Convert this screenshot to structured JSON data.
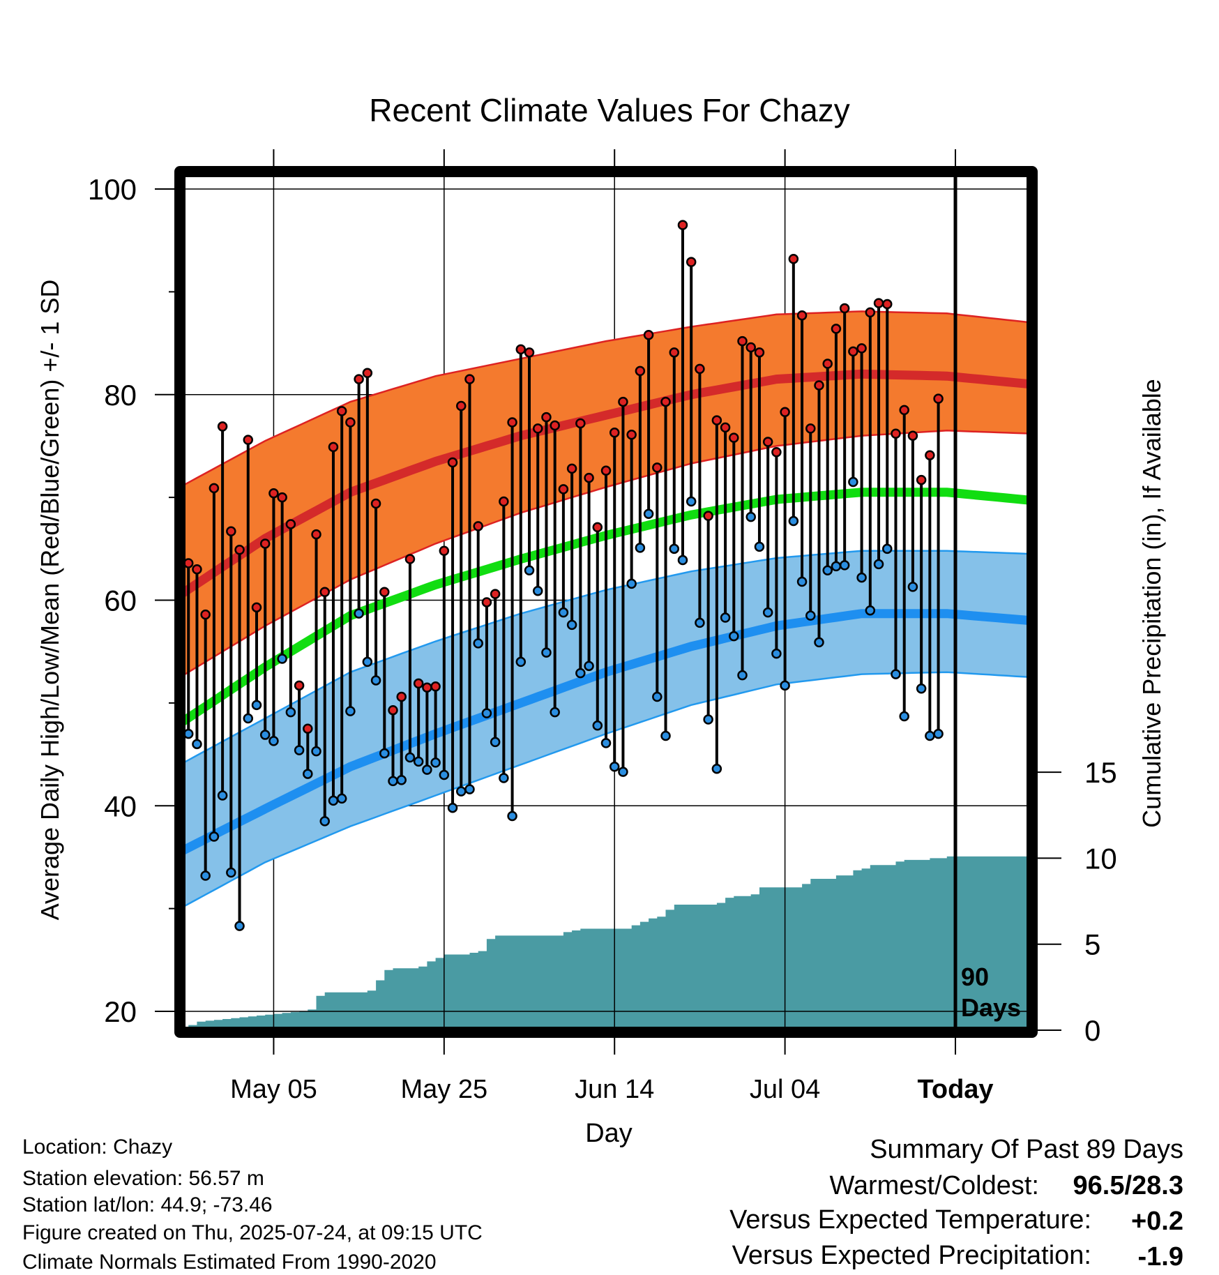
{
  "chart_data": {
    "type": "line",
    "title": "Recent Climate Values For Chazy",
    "xlabel": "Day",
    "ylabel": "Average Daily High/Low/Mean (Red/Blue/Green) +/- 1 SD",
    "y2label": "Cumulative Precipitation (in), If Available",
    "ylim": [
      19,
      102
    ],
    "y2lim": [
      0,
      25.5
    ],
    "xlim": [
      0,
      100
    ],
    "y_ticks": [
      20,
      40,
      60,
      80,
      100
    ],
    "y_tick_labels": [
      "20",
      "40",
      "60",
      "80",
      "100"
    ],
    "y2_ticks": [
      0,
      5,
      10,
      15
    ],
    "y2_tick_labels": [
      "0",
      "5",
      "10",
      "15"
    ],
    "x_ticks": [
      11,
      31,
      51,
      71,
      91
    ],
    "x_tick_labels": [
      "May 05",
      "May 25",
      "Jun 14",
      "Jul 04",
      "Today"
    ],
    "today_x": 91,
    "today_label_line1": "90",
    "today_label_line2": "Days",
    "grid": true,
    "normal_high": [
      [
        0,
        60.5
      ],
      [
        10,
        66.0
      ],
      [
        20,
        70.5
      ],
      [
        30,
        73.5
      ],
      [
        40,
        76.0
      ],
      [
        50,
        78.0
      ],
      [
        60,
        80.0
      ],
      [
        70,
        81.5
      ],
      [
        80,
        82.0
      ],
      [
        90,
        81.8
      ],
      [
        100,
        81.0
      ]
    ],
    "normal_high_sd_upper": [
      [
        0,
        71.0
      ],
      [
        10,
        75.5
      ],
      [
        20,
        79.3
      ],
      [
        30,
        81.8
      ],
      [
        40,
        83.5
      ],
      [
        50,
        85.2
      ],
      [
        60,
        86.6
      ],
      [
        70,
        87.8
      ],
      [
        80,
        88.1
      ],
      [
        90,
        87.9
      ],
      [
        100,
        87.0
      ]
    ],
    "normal_high_sd_lower": [
      [
        0,
        52.5
      ],
      [
        10,
        57.5
      ],
      [
        20,
        62.0
      ],
      [
        30,
        65.5
      ],
      [
        40,
        68.5
      ],
      [
        50,
        71.0
      ],
      [
        60,
        73.3
      ],
      [
        70,
        75.0
      ],
      [
        80,
        76.0
      ],
      [
        90,
        76.5
      ],
      [
        100,
        76.2
      ]
    ],
    "normal_mean": [
      [
        0,
        48.0
      ],
      [
        10,
        53.5
      ],
      [
        20,
        58.5
      ],
      [
        30,
        61.5
      ],
      [
        40,
        64.0
      ],
      [
        50,
        66.3
      ],
      [
        60,
        68.3
      ],
      [
        70,
        69.8
      ],
      [
        80,
        70.5
      ],
      [
        90,
        70.5
      ],
      [
        100,
        69.7
      ]
    ],
    "normal_low": [
      [
        0,
        35.5
      ],
      [
        10,
        39.7
      ],
      [
        20,
        43.8
      ],
      [
        30,
        47.0
      ],
      [
        40,
        50.0
      ],
      [
        50,
        53.0
      ],
      [
        60,
        55.5
      ],
      [
        70,
        57.5
      ],
      [
        80,
        58.7
      ],
      [
        90,
        58.7
      ],
      [
        100,
        58.0
      ]
    ],
    "normal_low_sd_upper": [
      [
        0,
        44.0
      ],
      [
        10,
        48.5
      ],
      [
        20,
        53.0
      ],
      [
        30,
        56.0
      ],
      [
        40,
        58.7
      ],
      [
        50,
        61.0
      ],
      [
        60,
        62.8
      ],
      [
        70,
        64.1
      ],
      [
        80,
        64.8
      ],
      [
        90,
        64.8
      ],
      [
        100,
        64.5
      ]
    ],
    "normal_low_sd_lower": [
      [
        0,
        30.0
      ],
      [
        10,
        34.5
      ],
      [
        20,
        38.0
      ],
      [
        30,
        41.0
      ],
      [
        40,
        44.0
      ],
      [
        50,
        47.0
      ],
      [
        60,
        49.8
      ],
      [
        70,
        51.8
      ],
      [
        80,
        52.8
      ],
      [
        90,
        53.0
      ],
      [
        100,
        52.5
      ]
    ],
    "daily_high": [
      63.6,
      63.0,
      58.6,
      70.9,
      76.9,
      66.7,
      64.9,
      75.6,
      59.3,
      65.5,
      70.4,
      70.0,
      67.4,
      51.7,
      47.5,
      66.4,
      60.8,
      74.9,
      78.4,
      77.3,
      81.5,
      82.1,
      69.4,
      60.8,
      49.3,
      50.6,
      64.0,
      51.9,
      51.5,
      51.6,
      64.8,
      73.4,
      78.9,
      81.5,
      67.2,
      59.8,
      60.6,
      69.6,
      77.3,
      84.4,
      84.1,
      76.7,
      77.8,
      77.0,
      70.8,
      72.8,
      77.2,
      71.9,
      67.1,
      72.6,
      76.3,
      79.3,
      76.1,
      82.3,
      85.8,
      72.9,
      79.3,
      84.1,
      96.5,
      92.9,
      82.5,
      68.2,
      77.5,
      76.8,
      75.8,
      85.2,
      84.6,
      84.1,
      75.4,
      74.4,
      78.3,
      93.2,
      87.7,
      76.7,
      80.9,
      83.0,
      86.4,
      88.4,
      84.2,
      84.5,
      88.0,
      88.9,
      88.8,
      76.2,
      78.5,
      76.0,
      71.7,
      74.1,
      79.6
    ],
    "daily_low": [
      47.0,
      46.0,
      33.2,
      37.0,
      41.0,
      33.5,
      28.3,
      48.5,
      49.8,
      46.9,
      46.3,
      54.3,
      49.1,
      45.4,
      43.1,
      45.3,
      38.5,
      40.5,
      40.7,
      49.2,
      58.7,
      54.0,
      52.2,
      45.1,
      42.4,
      42.5,
      44.7,
      44.3,
      43.5,
      44.2,
      43.0,
      39.8,
      41.4,
      41.6,
      55.8,
      49.0,
      46.2,
      42.7,
      39.0,
      54.0,
      62.9,
      60.9,
      54.9,
      49.1,
      58.8,
      57.6,
      52.9,
      53.6,
      47.8,
      46.1,
      43.8,
      43.3,
      61.6,
      65.1,
      68.4,
      50.6,
      46.8,
      65.0,
      63.9,
      69.6,
      57.8,
      48.4,
      43.6,
      58.3,
      56.5,
      52.7,
      68.1,
      65.2,
      58.8,
      54.8,
      51.7,
      67.7,
      61.8,
      58.5,
      55.9,
      62.9,
      63.3,
      63.4,
      71.5,
      62.2,
      59.0,
      63.5,
      65.0,
      52.8,
      48.7,
      61.3,
      51.4,
      46.8,
      47.0
    ],
    "cumulative_precip": [
      [
        0,
        0.0
      ],
      [
        0.5,
        0.1
      ],
      [
        1,
        0.3
      ],
      [
        2,
        0.5
      ],
      [
        3,
        0.55
      ],
      [
        4,
        0.6
      ],
      [
        5,
        0.65
      ],
      [
        6,
        0.7
      ],
      [
        7,
        0.75
      ],
      [
        8,
        0.8
      ],
      [
        9,
        0.85
      ],
      [
        10,
        0.9
      ],
      [
        11,
        0.95
      ],
      [
        12,
        1.0
      ],
      [
        13,
        1.05
      ],
      [
        14,
        1.1
      ],
      [
        15,
        1.2
      ],
      [
        16,
        2.0
      ],
      [
        17,
        2.2
      ],
      [
        18,
        2.2
      ],
      [
        19,
        2.2
      ],
      [
        20,
        2.2
      ],
      [
        21,
        2.2
      ],
      [
        22,
        2.3
      ],
      [
        23,
        2.9
      ],
      [
        24,
        3.5
      ],
      [
        25,
        3.6
      ],
      [
        26,
        3.6
      ],
      [
        27,
        3.6
      ],
      [
        28,
        3.7
      ],
      [
        29,
        4.0
      ],
      [
        30,
        4.2
      ],
      [
        31,
        4.4
      ],
      [
        32,
        4.4
      ],
      [
        33,
        4.4
      ],
      [
        34,
        4.5
      ],
      [
        35,
        4.6
      ],
      [
        36,
        5.3
      ],
      [
        37,
        5.5
      ],
      [
        38,
        5.5
      ],
      [
        39,
        5.5
      ],
      [
        40,
        5.5
      ],
      [
        41,
        5.5
      ],
      [
        42,
        5.5
      ],
      [
        43,
        5.5
      ],
      [
        44,
        5.5
      ],
      [
        45,
        5.7
      ],
      [
        46,
        5.8
      ],
      [
        47,
        5.9
      ],
      [
        48,
        5.9
      ],
      [
        49,
        5.9
      ],
      [
        50,
        5.9
      ],
      [
        51,
        5.9
      ],
      [
        52,
        5.9
      ],
      [
        53,
        6.1
      ],
      [
        54,
        6.3
      ],
      [
        55,
        6.5
      ],
      [
        56,
        6.6
      ],
      [
        57,
        7.0
      ],
      [
        58,
        7.3
      ],
      [
        59,
        7.3
      ],
      [
        60,
        7.3
      ],
      [
        61,
        7.3
      ],
      [
        62,
        7.3
      ],
      [
        63,
        7.4
      ],
      [
        64,
        7.7
      ],
      [
        65,
        7.8
      ],
      [
        66,
        7.8
      ],
      [
        67,
        7.9
      ],
      [
        68,
        8.3
      ],
      [
        69,
        8.3
      ],
      [
        70,
        8.3
      ],
      [
        71,
        8.3
      ],
      [
        72,
        8.3
      ],
      [
        73,
        8.5
      ],
      [
        74,
        8.8
      ],
      [
        75,
        8.8
      ],
      [
        76,
        8.8
      ],
      [
        77,
        9.0
      ],
      [
        78,
        9.0
      ],
      [
        79,
        9.3
      ],
      [
        80,
        9.4
      ],
      [
        81,
        9.6
      ],
      [
        82,
        9.6
      ],
      [
        83,
        9.6
      ],
      [
        84,
        9.8
      ],
      [
        85,
        9.9
      ],
      [
        86,
        9.9
      ],
      [
        87,
        9.9
      ],
      [
        88,
        10.0
      ],
      [
        89,
        10.0
      ],
      [
        90,
        10.1
      ],
      [
        100,
        10.1
      ]
    ]
  },
  "station_info": {
    "location": "Location: Chazy",
    "elevation": "Station elevation: 56.57 m",
    "latlon": "Station lat/lon: 44.9; -73.46",
    "created": "Figure created on Thu, 2025-07-24, at 09:15 UTC",
    "normals": "Climate Normals Estimated From 1990-2020"
  },
  "summary": {
    "title": "Summary Of Past 89 Days",
    "warmest_label": "Warmest/Coldest:",
    "warmest_value": "96.5/28.3",
    "temp_label": "Versus Expected Temperature:",
    "temp_value": "+0.2",
    "temp_color": "#cc2222",
    "precip_label": "Versus Expected Precipitation:",
    "precip_value": "-1.9",
    "precip_color": "#a0522d"
  },
  "colors": {
    "high_band": "#f47a2e",
    "high_band_edge": "#dd2222",
    "high_line": "#d42a2a",
    "mean_line": "#11dd11",
    "low_band": "#85c1e9",
    "low_band_edge": "#2299ee",
    "low_line": "#1e8ff0",
    "precip_fill": "#4a9ba3",
    "high_dot": "#dd2222",
    "low_dot": "#2b8ee0"
  }
}
